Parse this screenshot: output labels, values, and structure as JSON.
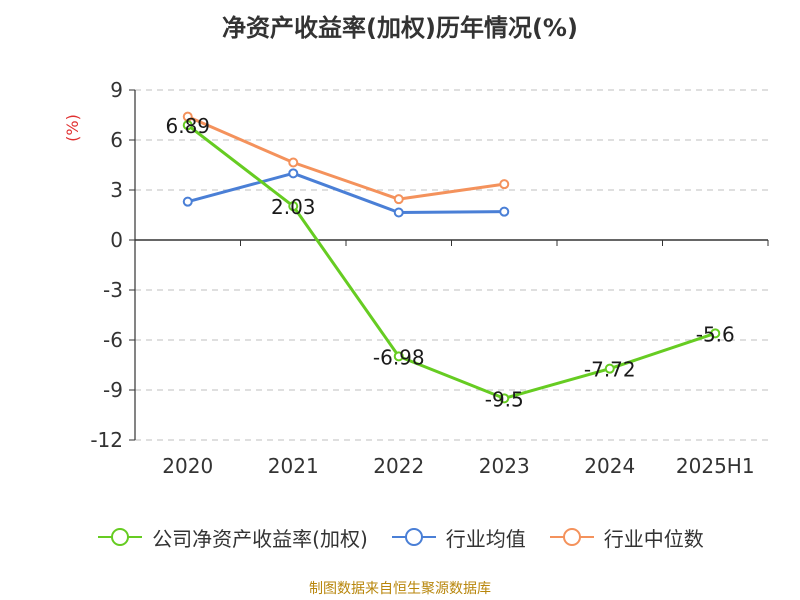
{
  "chart_data": {
    "type": "line",
    "title": "净资产收益率(加权)历年情况(%)",
    "ylabel": "(%)",
    "categories": [
      "2020",
      "2021",
      "2022",
      "2023",
      "2024",
      "2025H1"
    ],
    "ylim": [
      -12,
      9
    ],
    "yticks": [
      "9",
      "6",
      "3",
      "0",
      "-3",
      "-6",
      "-9",
      "-12"
    ],
    "grid": true,
    "legend_position": "bottom",
    "series": [
      {
        "name": "公司净资产收益率(加权)",
        "color": "#66cc22",
        "values": [
          6.89,
          2.03,
          -6.98,
          -9.5,
          -7.72,
          -5.6
        ],
        "labels": [
          "6.89",
          "2.03",
          "-6.98",
          "-9.5",
          "-7.72",
          "-5.6"
        ]
      },
      {
        "name": "行业均值",
        "color": "#4a7fd6",
        "values": [
          2.3,
          4.0,
          1.65,
          1.7,
          null,
          null
        ]
      },
      {
        "name": "行业中位数",
        "color": "#f4925c",
        "values": [
          7.4,
          4.65,
          2.45,
          3.35,
          null,
          null
        ]
      }
    ]
  },
  "footer": {
    "source": "制图数据来自恒生聚源数据库"
  }
}
